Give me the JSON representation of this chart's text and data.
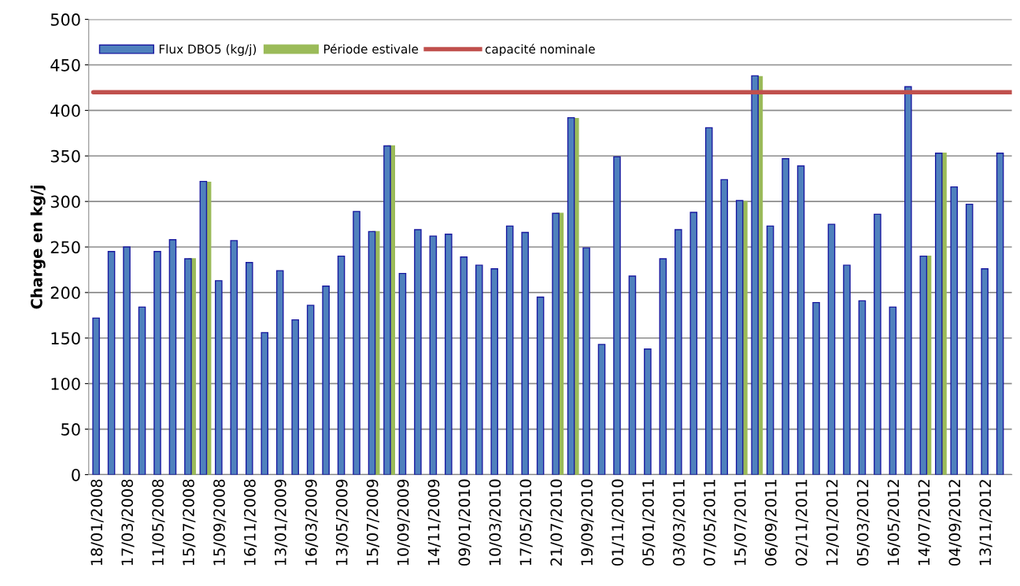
{
  "chart_data": {
    "type": "bar",
    "ylabel": "Charge en kg/j",
    "categories": [
      "18/01/2008",
      null,
      "17/03/2008",
      null,
      "11/05/2008",
      null,
      "15/07/2008",
      null,
      "15/09/2008",
      null,
      "16/11/2008",
      null,
      "13/01/2009",
      null,
      "16/03/2009",
      null,
      "13/05/2009",
      null,
      "15/07/2009",
      null,
      "10/09/2009",
      null,
      "14/11/2009",
      null,
      "09/01/2010",
      null,
      "10/03/2010",
      null,
      "17/05/2010",
      null,
      "21/07/2010",
      null,
      "19/09/2010",
      null,
      "01/11/2010",
      null,
      "05/01/2011",
      null,
      "03/03/2011",
      null,
      "07/05/2011",
      null,
      "15/07/2011",
      null,
      "06/09/2011",
      null,
      "02/11/2011",
      null,
      "12/01/2012",
      null,
      "05/03/2012",
      null,
      "16/05/2012",
      null,
      "14/07/2012",
      null,
      "04/09/2012",
      null,
      "13/11/2012",
      null
    ],
    "series": [
      {
        "name": "Flux DBO5 (kg/j)",
        "color": "#4f81bd",
        "values": [
          172,
          245,
          250,
          184,
          245,
          258,
          237,
          322,
          213,
          257,
          233,
          156,
          224,
          170,
          186,
          207,
          240,
          289,
          267,
          361,
          221,
          269,
          262,
          264,
          239,
          230,
          226,
          273,
          266,
          195,
          287,
          392,
          249,
          143,
          349,
          218,
          138,
          237,
          269,
          288,
          381,
          324,
          301,
          438,
          273,
          347,
          339,
          189,
          275,
          230,
          191,
          286,
          184,
          426,
          240,
          353,
          316,
          297,
          226,
          353
        ]
      },
      {
        "name": "Période estivale",
        "color": "#9bbb59",
        "values": [
          null,
          null,
          null,
          null,
          null,
          null,
          237,
          321,
          null,
          null,
          null,
          null,
          null,
          null,
          null,
          null,
          null,
          null,
          267,
          361,
          null,
          null,
          null,
          null,
          null,
          null,
          null,
          null,
          null,
          null,
          287,
          391,
          null,
          null,
          null,
          null,
          null,
          null,
          null,
          null,
          null,
          null,
          300,
          437,
          null,
          null,
          null,
          null,
          null,
          null,
          null,
          null,
          null,
          null,
          240,
          353,
          null,
          null,
          null,
          null
        ]
      }
    ],
    "ref_lines": [
      {
        "axis": "y",
        "value": 420,
        "label": "capacité nominale",
        "color": "#c0504d"
      }
    ],
    "ylim": [
      0,
      500
    ],
    "yticks": [
      0,
      50,
      100,
      150,
      200,
      250,
      300,
      350,
      400,
      450,
      500
    ],
    "grid": "y",
    "legend": "top left"
  }
}
